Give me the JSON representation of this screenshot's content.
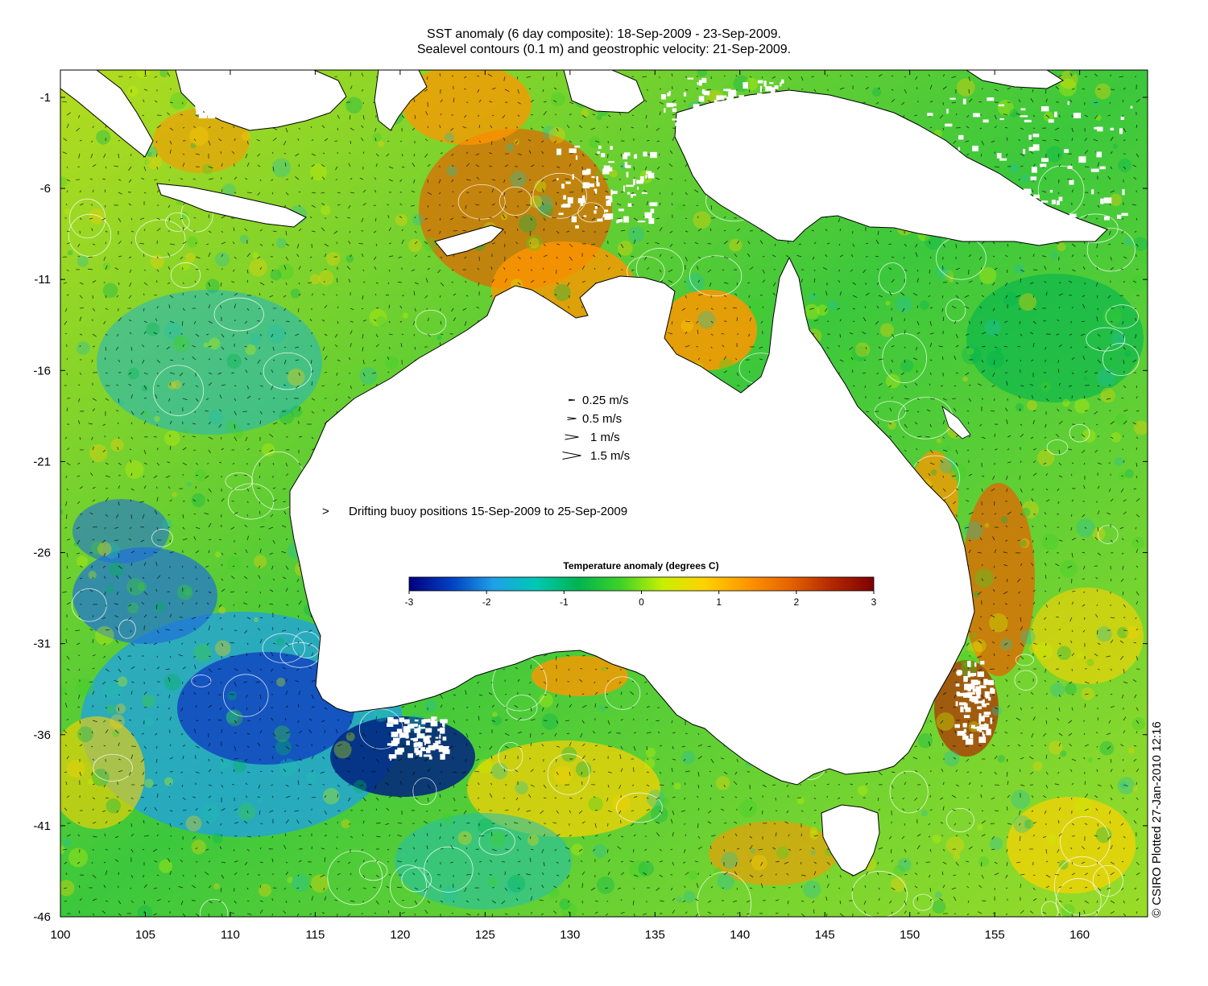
{
  "title": {
    "line1": "SST anomaly (6 day composite): 18-Sep-2009 - 23-Sep-2009.",
    "line2": "Sealevel contours (0.1 m) and geostrophic velocity: 21-Sep-2009."
  },
  "credit": "© CSIRO Plotted 27-Jan-2010 12:16",
  "axes": {
    "lon_ticks": [
      "100",
      "105",
      "110",
      "115",
      "120",
      "125",
      "130",
      "135",
      "140",
      "145",
      "150",
      "155",
      "160"
    ],
    "lat_ticks": [
      "-1",
      "-6",
      "-11",
      "-16",
      "-21",
      "-26",
      "-31",
      "-36",
      "-41",
      "-46"
    ],
    "lon_range": [
      100,
      164
    ],
    "lat_range": [
      -46,
      0.5
    ]
  },
  "velocity_legend": [
    {
      "label": "0.25 m/s",
      "speed": 0.25
    },
    {
      "label": "0.5 m/s",
      "speed": 0.5
    },
    {
      "label": "1 m/s",
      "speed": 1
    },
    {
      "label": "1.5 m/s",
      "speed": 1.5
    }
  ],
  "buoy_legend": {
    "symbol": ">",
    "label": "Drifting buoy positions 15-Sep-2009 to 25-Sep-2009",
    "color": "#ff00ff"
  },
  "colorbar": {
    "title": "Temperature anomaly (degrees C)",
    "ticks": [
      "-3",
      "-2",
      "-1",
      "0",
      "1",
      "2",
      "3"
    ],
    "range": [
      -3,
      3
    ],
    "colors": [
      "#00007f",
      "#0040c0",
      "#1fa0e8",
      "#00c8b4",
      "#00b450",
      "#3cd228",
      "#c8f000",
      "#ffd200",
      "#ff9600",
      "#e66400",
      "#b42800",
      "#7f0000"
    ]
  },
  "colors": {
    "land": "#ffffff",
    "coast": "#000000",
    "contour": "#ffffff",
    "cold": "#1040c0",
    "warm": "#ff9600"
  }
}
